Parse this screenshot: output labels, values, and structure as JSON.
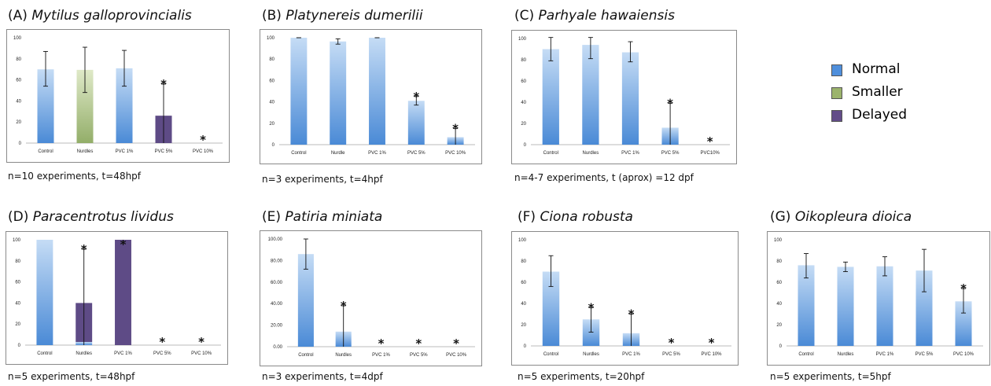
{
  "colors": {
    "normal_light": "#c5dcf5",
    "normal_dark": "#4a8ad6",
    "smaller_light": "#dfe9c8",
    "smaller_dark": "#93ae69",
    "delayed": "#5e4b86",
    "frame": "#8a8a8a"
  },
  "legend": [
    {
      "label": "Normal",
      "color": "#4f8fdc"
    },
    {
      "label": "Smaller",
      "color": "#9bb36c"
    },
    {
      "label": "Delayed",
      "color": "#624c88"
    }
  ],
  "chart_data": [
    {
      "type": "bar",
      "letter": "(A)",
      "species": "Mytilus galloprovincialis",
      "note": "n=10 experiments, t=48hpf",
      "categories": [
        "Control",
        "Nurdles",
        "PVC 1%",
        "PVC 5%",
        "PVC 10%"
      ],
      "yticks": [
        "0",
        "20",
        "40",
        "60",
        "80",
        "100"
      ],
      "ylim": [
        0,
        100
      ],
      "series": [
        {
          "name": "Normal",
          "values": [
            70,
            0,
            71,
            0,
            0
          ]
        },
        {
          "name": "Smaller",
          "values": [
            0,
            69.5,
            0,
            0,
            0
          ]
        },
        {
          "name": "Delayed",
          "values": [
            0,
            0,
            0,
            26,
            0
          ]
        }
      ],
      "error_bars": [
        [
          54,
          87
        ],
        [
          48,
          91
        ],
        [
          54,
          88
        ],
        [
          0,
          56
        ],
        null
      ],
      "significance": [
        "",
        "",
        "",
        "*",
        "*"
      ]
    },
    {
      "type": "bar",
      "letter": "(B)",
      "species": "Platynereis dumerilii",
      "note": "n=3 experiments, t=4hpf",
      "categories": [
        "Control",
        "Nurdle",
        "PVC 1%",
        "PVC 5%",
        "PVC 10%"
      ],
      "yticks": [
        "0",
        "20",
        "40",
        "60",
        "80",
        "100"
      ],
      "ylim": [
        0,
        100
      ],
      "series": [
        {
          "name": "Normal",
          "values": [
            100,
            96.5,
            100,
            41,
            7
          ]
        },
        {
          "name": "Smaller",
          "values": [
            0,
            0,
            0,
            0,
            0
          ]
        },
        {
          "name": "Delayed",
          "values": [
            0,
            0,
            0,
            0,
            0
          ]
        }
      ],
      "error_bars": [
        [
          100,
          100
        ],
        [
          94,
          99
        ],
        [
          100,
          100
        ],
        [
          37,
          45
        ],
        [
          0,
          15
        ]
      ],
      "significance": [
        "",
        "",
        "",
        "*",
        "*"
      ]
    },
    {
      "type": "bar",
      "letter": "(C)",
      "species": "Parhyale hawaiensis",
      "note": "n=4-7 experiments, t (aprox) =12 dpf",
      "categories": [
        "Control",
        "Nurdles",
        "PVC 1%",
        "PVC 5%",
        "PVC10%"
      ],
      "yticks": [
        "0",
        "20",
        "40",
        "60",
        "80",
        "100"
      ],
      "ylim": [
        0,
        100
      ],
      "series": [
        {
          "name": "Normal",
          "values": [
            90,
            94,
            87,
            16,
            0
          ]
        },
        {
          "name": "Smaller",
          "values": [
            0,
            0,
            0,
            0,
            0
          ]
        },
        {
          "name": "Delayed",
          "values": [
            0,
            0,
            0,
            0,
            0
          ]
        }
      ],
      "error_bars": [
        [
          79,
          101
        ],
        [
          81,
          101
        ],
        [
          78,
          97
        ],
        [
          0,
          39
        ],
        null
      ],
      "significance": [
        "",
        "",
        "",
        "*",
        "*"
      ]
    },
    {
      "type": "bar",
      "letter": "(D)",
      "species": "Paracentrotus lividus",
      "note": "n=5 experiments, t=48hpf",
      "categories": [
        "Control",
        "Nurdles",
        "PVC 1%",
        "PVC 5%",
        "PVC 10%"
      ],
      "yticks": [
        "0",
        "20",
        "40",
        "60",
        "80",
        "100"
      ],
      "ylim": [
        0,
        100
      ],
      "series": [
        {
          "name": "Normal",
          "values": [
            100,
            3,
            0,
            0,
            0
          ]
        },
        {
          "name": "Smaller",
          "values": [
            0,
            0,
            0,
            0,
            0
          ]
        },
        {
          "name": "Delayed",
          "values": [
            0,
            37,
            100,
            0,
            0
          ]
        }
      ],
      "error_bars": [
        null,
        [
          0,
          91
        ],
        null,
        null,
        null
      ],
      "significance": [
        "",
        "*",
        "*",
        "*",
        "*"
      ]
    },
    {
      "type": "bar",
      "letter": "(E)",
      "species": "Patiria miniata",
      "note": "n=3 experiments, t=4dpf",
      "categories": [
        "Control",
        "Nurdles",
        "PVC 1%",
        "PVC 5%",
        "PVC 10%"
      ],
      "yticks": [
        "0.00",
        "20.00",
        "40.00",
        "60.00",
        "80.00",
        "100.00"
      ],
      "ylim": [
        0,
        100
      ],
      "series": [
        {
          "name": "Normal",
          "values": [
            86,
            14,
            0,
            0,
            0
          ]
        },
        {
          "name": "Smaller",
          "values": [
            0,
            0,
            0,
            0,
            0
          ]
        },
        {
          "name": "Delayed",
          "values": [
            0,
            0,
            0,
            0,
            0
          ]
        }
      ],
      "error_bars": [
        [
          72,
          100
        ],
        [
          0,
          38
        ],
        null,
        null,
        null
      ],
      "significance": [
        "",
        "*",
        "*",
        "*",
        "*"
      ]
    },
    {
      "type": "bar",
      "letter": "(F)",
      "species": "Ciona robusta",
      "note": "n=5 experiments, t=20hpf",
      "categories": [
        "Control",
        "Nurdles",
        "PVC 1%",
        "PVC 5%",
        "PVC 10%"
      ],
      "yticks": [
        "0",
        "20",
        "40",
        "60",
        "80",
        "100"
      ],
      "ylim": [
        0,
        100
      ],
      "series": [
        {
          "name": "Normal",
          "values": [
            70,
            25,
            12,
            0,
            0
          ]
        },
        {
          "name": "Smaller",
          "values": [
            0,
            0,
            0,
            0,
            0
          ]
        },
        {
          "name": "Delayed",
          "values": [
            0,
            0,
            0,
            0,
            0
          ]
        }
      ],
      "error_bars": [
        [
          56,
          85
        ],
        [
          13,
          36
        ],
        [
          0,
          30
        ],
        null,
        null
      ],
      "significance": [
        "",
        "*",
        "*",
        "*",
        "*"
      ]
    },
    {
      "type": "bar",
      "letter": "(G)",
      "species": "Oikopleura dioica",
      "note": "n=5 experiments, t=5hpf",
      "categories": [
        "Control",
        "Nurdles",
        "PVC 1%",
        "PVC 5%",
        "PVC 10%"
      ],
      "yticks": [
        "0",
        "20",
        "40",
        "60",
        "80",
        "100"
      ],
      "ylim": [
        0,
        100
      ],
      "series": [
        {
          "name": "Normal",
          "values": [
            76,
            74.5,
            75,
            71,
            42
          ]
        },
        {
          "name": "Smaller",
          "values": [
            0,
            0,
            0,
            0,
            0
          ]
        },
        {
          "name": "Delayed",
          "values": [
            0,
            0,
            0,
            0,
            0
          ]
        }
      ],
      "error_bars": [
        [
          64,
          87
        ],
        [
          70,
          79
        ],
        [
          66,
          84
        ],
        [
          51,
          91
        ],
        [
          31,
          54
        ]
      ],
      "significance": [
        "",
        "",
        "",
        "",
        "*"
      ]
    }
  ]
}
